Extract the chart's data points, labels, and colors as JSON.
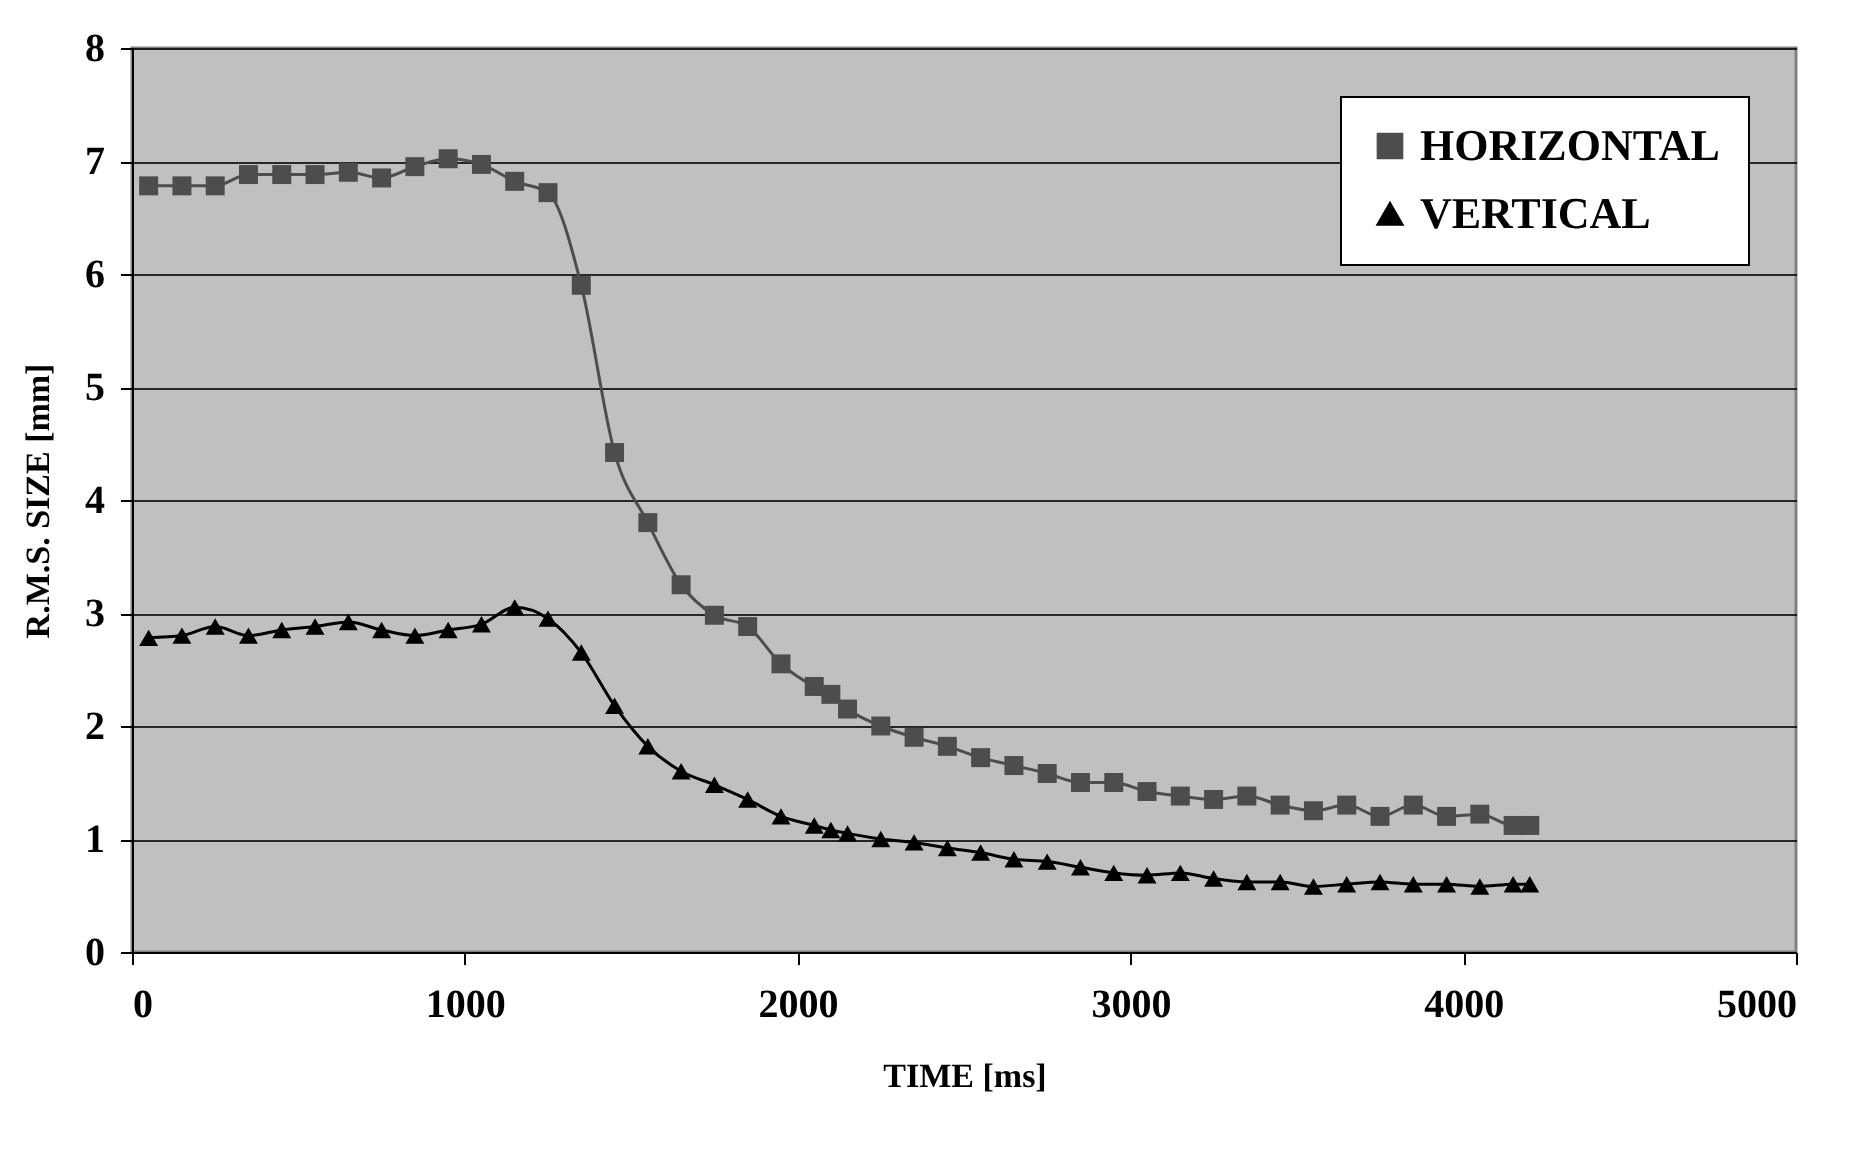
{
  "chart_data": {
    "type": "line",
    "xlabel": "TIME [ms]",
    "ylabel": "R.M.S. SIZE [mm]",
    "x": [
      50,
      150,
      250,
      350,
      450,
      550,
      650,
      750,
      850,
      950,
      1050,
      1150,
      1250,
      1350,
      1450,
      1550,
      1650,
      1750,
      1850,
      1950,
      2050,
      2100,
      2150,
      2250,
      2350,
      2450,
      2550,
      2650,
      2750,
      2850,
      2950,
      3050,
      3150,
      3250,
      3350,
      3450,
      3550,
      3650,
      3750,
      3850,
      3950,
      4050,
      4150,
      4200
    ],
    "series": [
      {
        "name": "HORIZONTAL",
        "color": "#4d4d4d",
        "marker": "square",
        "values": [
          6.78,
          6.78,
          6.78,
          6.88,
          6.88,
          6.88,
          6.9,
          6.85,
          6.95,
          7.02,
          6.97,
          6.82,
          6.72,
          5.9,
          4.42,
          3.8,
          3.25,
          2.98,
          2.88,
          2.55,
          2.35,
          2.28,
          2.15,
          2.0,
          1.9,
          1.82,
          1.72,
          1.65,
          1.58,
          1.5,
          1.5,
          1.42,
          1.38,
          1.35,
          1.38,
          1.3,
          1.25,
          1.3,
          1.2,
          1.3,
          1.2,
          1.22,
          1.12,
          1.12
        ]
      },
      {
        "name": "VERTICAL",
        "color": "#000000",
        "marker": "triangle",
        "values": [
          2.78,
          2.8,
          2.88,
          2.8,
          2.85,
          2.88,
          2.92,
          2.85,
          2.8,
          2.85,
          2.9,
          3.05,
          2.95,
          2.65,
          2.18,
          1.82,
          1.6,
          1.48,
          1.35,
          1.2,
          1.12,
          1.08,
          1.05,
          1.0,
          0.97,
          0.92,
          0.88,
          0.82,
          0.8,
          0.75,
          0.7,
          0.68,
          0.7,
          0.65,
          0.62,
          0.62,
          0.58,
          0.6,
          0.62,
          0.6,
          0.6,
          0.58,
          0.6,
          0.6
        ]
      }
    ],
    "xlim": [
      0,
      5000
    ],
    "xticks": [
      0,
      1000,
      2000,
      3000,
      4000,
      5000
    ],
    "ylim": [
      0,
      8
    ],
    "yticks": [
      0,
      1,
      2,
      3,
      4,
      5,
      6,
      7,
      8
    ],
    "grid": "y",
    "legend": "top right",
    "line_style": "solid"
  }
}
